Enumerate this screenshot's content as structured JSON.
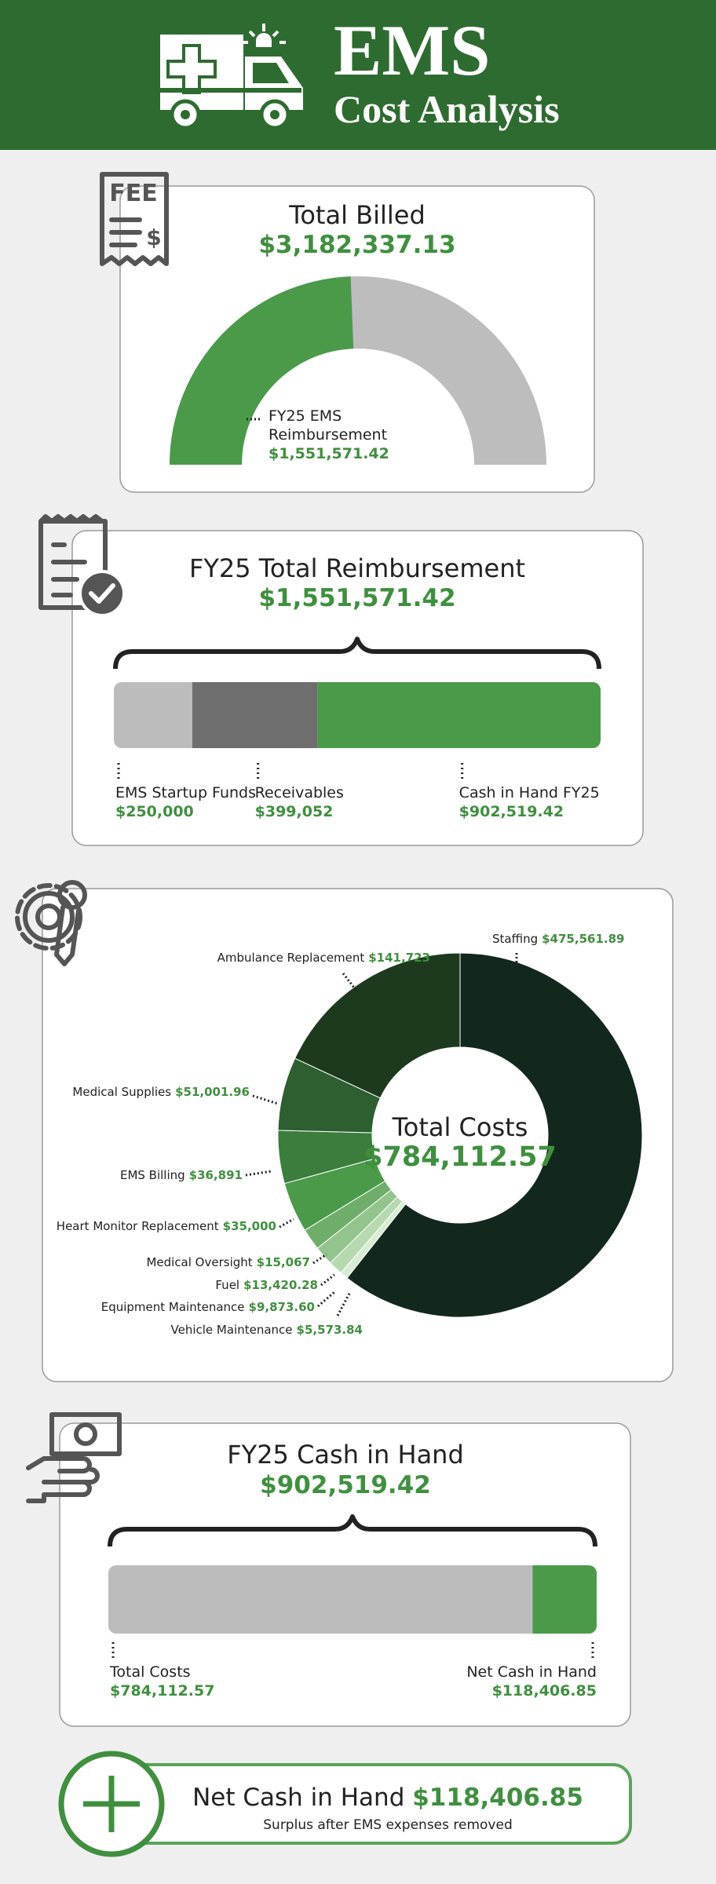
{
  "header": {
    "title": "EMS",
    "subtitle": "Cost Analysis"
  },
  "icons": {
    "receipt_text": "FEE",
    "receipt_symbol": "$"
  },
  "chart_data": [
    {
      "type": "gauge",
      "title": "Total Billed",
      "total": 3182337.13,
      "total_label": "$3,182,337.13",
      "categories": [
        "FY25 EMS Reimbursement"
      ],
      "values": [
        1551571.42
      ],
      "value_labels": [
        "$1,551,571.42"
      ],
      "colors": [
        "#4a9a4a"
      ],
      "track_color": "#bdbdbd"
    },
    {
      "type": "stacked_bar",
      "title": "FY25 Total Reimbursement",
      "total": 1551571.42,
      "total_label": "$1,551,571.42",
      "categories": [
        "EMS Startup Funds",
        "Receivables",
        "Cash in Hand FY25"
      ],
      "values": [
        250000,
        399052,
        902519.42
      ],
      "value_labels": [
        "$250,000",
        "$399,052",
        "$902,519.42"
      ],
      "colors": [
        "#bcbcbc",
        "#6e6e6e",
        "#4a9a4a"
      ]
    },
    {
      "type": "donut",
      "title": "Total Costs",
      "total": 784112.57,
      "total_label": "$784,112.57",
      "categories": [
        "Staffing",
        "Vehicle Maintenance",
        "Equipment Maintenance",
        "Fuel",
        "Medical Oversight",
        "Heart Monitor Replacement",
        "EMS Billing",
        "Medical Supplies",
        "Ambulance Replacement"
      ],
      "values": [
        475561.89,
        5573.84,
        9873.6,
        13420.28,
        15067,
        35000,
        36891,
        51001.96,
        141723
      ],
      "value_labels": [
        "$475,561.89",
        "$5,573.84",
        "$9,873.60",
        "$13,420.28",
        "$15,067",
        "$35,000",
        "$36,891",
        "$51,001.96",
        "$141,723"
      ],
      "colors": [
        "#13281d",
        "#d8ecd3",
        "#b6d9af",
        "#93c48d",
        "#6fae6a",
        "#4a9a4a",
        "#3a7d3c",
        "#2d5f30",
        "#1d3a1e"
      ]
    },
    {
      "type": "stacked_bar",
      "title": "FY25 Cash in Hand",
      "total": 902519.42,
      "total_label": "$902,519.42",
      "categories": [
        "Total Costs",
        "Net Cash in Hand"
      ],
      "values": [
        784112.57,
        118406.85
      ],
      "value_labels": [
        "$784,112.57",
        "$118,406.85"
      ],
      "colors": [
        "#bcbcbc",
        "#4a9a4a"
      ]
    }
  ],
  "footer": {
    "label": "Net Cash in Hand",
    "value": "$118,406.85",
    "note": "Surplus after EMS expenses removed"
  }
}
